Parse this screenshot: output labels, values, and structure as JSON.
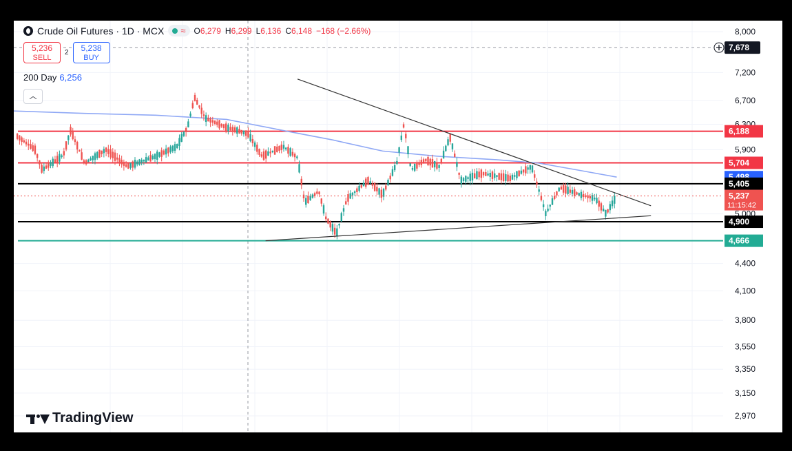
{
  "header": {
    "symbol_title": "Crude Oil Futures · 1D · MCX",
    "ohlc": [
      {
        "key": "O",
        "value": "6,279"
      },
      {
        "key": "H",
        "value": "6,299"
      },
      {
        "key": "L",
        "value": "6,136"
      },
      {
        "key": "C",
        "value": "6,148"
      }
    ],
    "change": "−168 (−2.66%)"
  },
  "trade": {
    "sell_price": "5,236",
    "sell_label": "SELL",
    "spread": "2",
    "buy_price": "5,238",
    "buy_label": "BUY"
  },
  "indicator": {
    "name": "200 Day",
    "value": "6,256"
  },
  "brand": "TradingView",
  "crosshair": {
    "price_label": "7,678"
  },
  "colors": {
    "up": "#26a69a",
    "down": "#ef5350",
    "resistance": "#f23645",
    "support": "#000000",
    "ma": "#8fa8f5",
    "accent_green": "#22ab94",
    "blue": "#2962ff"
  },
  "chart_data": {
    "type": "candlestick",
    "title": "Crude Oil Futures · 1D · MCX",
    "y_axis_ticks": [
      8000,
      7200,
      6700,
      6300,
      5900,
      5000,
      4400,
      4100,
      3800,
      3550,
      3350,
      3150,
      2970
    ],
    "y_axis_labels": [
      "8,000",
      "7,200",
      "6,700",
      "6,300",
      "5,900",
      "5,000",
      "4,400",
      "4,100",
      "3,800",
      "3,550",
      "3,350",
      "3,150",
      "2,970"
    ],
    "log_scale": true,
    "grid": true,
    "horizontal_levels": [
      {
        "value": 6188,
        "label": "6,188",
        "color": "#f23645"
      },
      {
        "value": 5704,
        "label": "5,704",
        "color": "#f23645"
      },
      {
        "value": 5405,
        "label": "5,405",
        "color": "#000000"
      },
      {
        "value": 4900,
        "label": "4,900",
        "color": "#000000"
      },
      {
        "value": 4666,
        "label": "4,666",
        "color": "#22ab94"
      }
    ],
    "ma_200": {
      "label": "5,498",
      "value": 5498
    },
    "last_price": {
      "value": 5237,
      "label": "5,237",
      "countdown": "11:15:42"
    },
    "trendlines": [
      {
        "name": "descending-resistance",
        "from": [
          0.4,
          7080
        ],
        "to": [
          0.84,
          5180
        ]
      },
      {
        "name": "ascending-support",
        "from": [
          0.355,
          4666
        ],
        "to": [
          0.84,
          4950
        ]
      }
    ],
    "price_path": [
      [
        0.0,
        6150
      ],
      [
        0.03,
        5900
      ],
      [
        0.04,
        5600
      ],
      [
        0.07,
        5820
      ],
      [
        0.08,
        6200
      ],
      [
        0.1,
        5700
      ],
      [
        0.13,
        5900
      ],
      [
        0.16,
        5650
      ],
      [
        0.2,
        5800
      ],
      [
        0.23,
        5950
      ],
      [
        0.245,
        6250
      ],
      [
        0.255,
        6750
      ],
      [
        0.27,
        6400
      ],
      [
        0.3,
        6250
      ],
      [
        0.33,
        6150
      ],
      [
        0.35,
        5800
      ],
      [
        0.38,
        5950
      ],
      [
        0.4,
        5780
      ],
      [
        0.41,
        5150
      ],
      [
        0.43,
        5300
      ],
      [
        0.44,
        4950
      ],
      [
        0.455,
        4750
      ],
      [
        0.47,
        5200
      ],
      [
        0.5,
        5450
      ],
      [
        0.52,
        5250
      ],
      [
        0.54,
        5700
      ],
      [
        0.55,
        6300
      ],
      [
        0.56,
        5600
      ],
      [
        0.58,
        5750
      ],
      [
        0.6,
        5650
      ],
      [
        0.615,
        6100
      ],
      [
        0.63,
        5450
      ],
      [
        0.66,
        5550
      ],
      [
        0.7,
        5480
      ],
      [
        0.73,
        5650
      ],
      [
        0.75,
        5000
      ],
      [
        0.77,
        5350
      ],
      [
        0.8,
        5250
      ],
      [
        0.82,
        5200
      ],
      [
        0.835,
        5000
      ],
      [
        0.85,
        5237
      ]
    ],
    "ma_path": [
      [
        0.0,
        6520
      ],
      [
        0.1,
        6480
      ],
      [
        0.2,
        6450
      ],
      [
        0.3,
        6380
      ],
      [
        0.38,
        6200
      ],
      [
        0.45,
        6050
      ],
      [
        0.52,
        5880
      ],
      [
        0.6,
        5800
      ],
      [
        0.68,
        5750
      ],
      [
        0.74,
        5700
      ],
      [
        0.8,
        5590
      ],
      [
        0.85,
        5498
      ]
    ]
  }
}
